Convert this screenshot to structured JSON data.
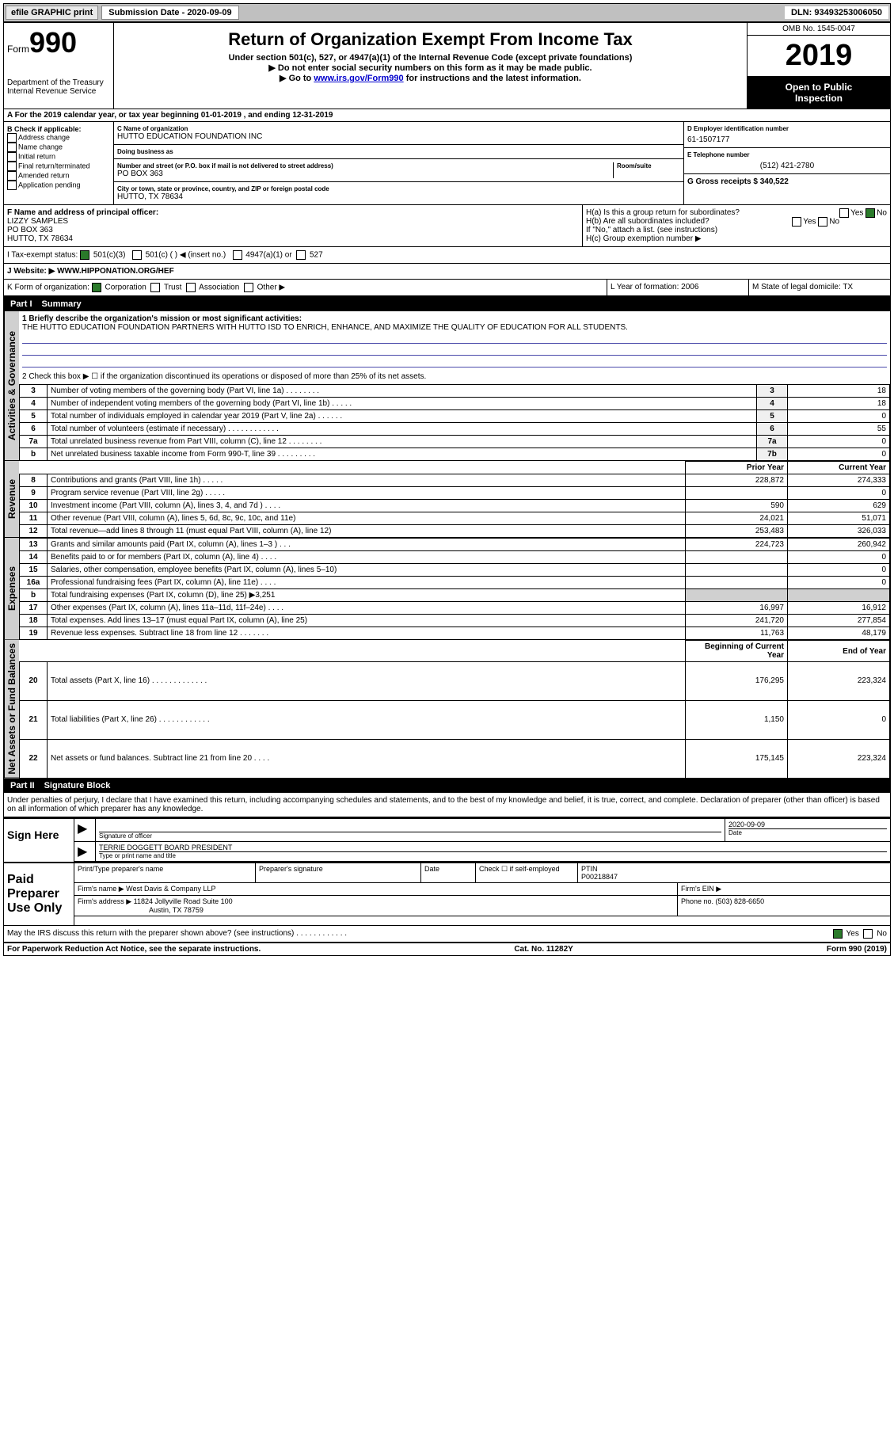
{
  "toolbar": {
    "efile_label": "efile GRAPHIC print",
    "submission_label": "Submission Date - 2020-09-09",
    "dln_label": "DLN: 93493253006050"
  },
  "header": {
    "form_label": "Form",
    "form_number": "990",
    "dept": "Department of the Treasury",
    "irs": "Internal Revenue Service",
    "title": "Return of Organization Exempt From Income Tax",
    "subtitle": "Under section 501(c), 527, or 4947(a)(1) of the Internal Revenue Code (except private foundations)",
    "instr1": "▶ Do not enter social security numbers on this form as it may be made public.",
    "instr2_prefix": "▶ Go to ",
    "instr2_link": "www.irs.gov/Form990",
    "instr2_suffix": " for instructions and the latest information.",
    "omb": "OMB No. 1545-0047",
    "year": "2019",
    "open_public1": "Open to Public",
    "open_public2": "Inspection"
  },
  "section_a": "A For the 2019 calendar year, or tax year beginning 01-01-2019   , and ending 12-31-2019",
  "box_b": {
    "label": "B Check if applicable:",
    "items": [
      "Address change",
      "Name change",
      "Initial return",
      "Final return/terminated",
      "Amended return",
      "Application pending"
    ]
  },
  "box_c": {
    "name_label": "C Name of organization",
    "name": "HUTTO EDUCATION FOUNDATION INC",
    "dba_label": "Doing business as",
    "addr_label": "Number and street (or P.O. box if mail is not delivered to street address)",
    "room_label": "Room/suite",
    "addr": "PO BOX 363",
    "city_label": "City or town, state or province, country, and ZIP or foreign postal code",
    "city": "HUTTO, TX  78634"
  },
  "box_d": {
    "label": "D Employer identification number",
    "value": "61-1507177"
  },
  "box_e": {
    "label": "E Telephone number",
    "value": "(512) 421-2780"
  },
  "box_g": {
    "label": "G Gross receipts $ 340,522"
  },
  "box_f": {
    "label": "F  Name and address of principal officer:",
    "name": "LIZZY SAMPLES",
    "addr1": "PO BOX 363",
    "addr2": "HUTTO, TX  78634"
  },
  "box_h": {
    "ha_label": "H(a)  Is this a group return for subordinates?",
    "ha_yes": "Yes",
    "ha_no": "No",
    "hb_label": "H(b)  Are all subordinates included?",
    "hb_yes": "Yes",
    "hb_no": "No",
    "hb_note": "If \"No,\" attach a list. (see instructions)",
    "hc_label": "H(c)  Group exemption number ▶"
  },
  "tax_exempt": {
    "label": "I   Tax-exempt status:",
    "opt1": "501(c)(3)",
    "opt2": "501(c) (  ) ◀ (insert no.)",
    "opt3": "4947(a)(1) or",
    "opt4": "527"
  },
  "website": {
    "label": "J  Website: ▶",
    "value": "WWW.HIPPONATION.ORG/HEF"
  },
  "box_k": {
    "label": "K Form of organization:",
    "opts": [
      "Corporation",
      "Trust",
      "Association",
      "Other ▶"
    ]
  },
  "box_l": {
    "label": "L Year of formation: 2006"
  },
  "box_m": {
    "label": "M State of legal domicile: TX"
  },
  "part1": {
    "label": "Part I",
    "title": "Summary"
  },
  "summary": {
    "line1_label": "1  Briefly describe the organization's mission or most significant activities:",
    "mission": "THE HUTTO EDUCATION FOUNDATION PARTNERS WITH HUTTO ISD TO ENRICH, ENHANCE, AND MAXIMIZE THE QUALITY OF EDUCATION FOR ALL STUDENTS.",
    "line2": "2    Check this box ▶ ☐  if the organization discontinued its operations or disposed of more than 25% of its net assets."
  },
  "side_labels": {
    "activities": "Activities & Governance",
    "revenue": "Revenue",
    "expenses": "Expenses",
    "netassets": "Net Assets or Fund Balances"
  },
  "gov_rows": [
    {
      "num": "3",
      "desc": "Number of voting members of the governing body (Part VI, line 1a)  .    .    .    .    .    .    .    .",
      "box": "3",
      "val": "18"
    },
    {
      "num": "4",
      "desc": "Number of independent voting members of the governing body (Part VI, line 1b)  .    .    .    .    .",
      "box": "4",
      "val": "18"
    },
    {
      "num": "5",
      "desc": "Total number of individuals employed in calendar year 2019 (Part V, line 2a)  .    .    .    .    .    .",
      "box": "5",
      "val": "0"
    },
    {
      "num": "6",
      "desc": "Total number of volunteers (estimate if necessary)    .    .    .    .    .    .    .    .    .    .    .    .",
      "box": "6",
      "val": "55"
    },
    {
      "num": "7a",
      "desc": "Total unrelated business revenue from Part VIII, column (C), line 12  .    .    .    .    .    .    .    .",
      "box": "7a",
      "val": "0"
    },
    {
      "num": "b",
      "desc": "Net unrelated business taxable income from Form 990-T, line 39   .    .    .    .    .    .    .    .    .",
      "box": "7b",
      "val": "0"
    }
  ],
  "year_header": {
    "prior": "Prior Year",
    "current": "Current Year"
  },
  "rev_rows": [
    {
      "num": "8",
      "desc": "Contributions and grants (Part VIII, line 1h)   .    .    .    .    .",
      "py": "228,872",
      "cy": "274,333"
    },
    {
      "num": "9",
      "desc": "Program service revenue (Part VIII, line 2g)   .    .    .    .    .",
      "py": "",
      "cy": "0"
    },
    {
      "num": "10",
      "desc": "Investment income (Part VIII, column (A), lines 3, 4, and 7d )   .    .    .    .",
      "py": "590",
      "cy": "629"
    },
    {
      "num": "11",
      "desc": "Other revenue (Part VIII, column (A), lines 5, 6d, 8c, 9c, 10c, and 11e)",
      "py": "24,021",
      "cy": "51,071"
    },
    {
      "num": "12",
      "desc": "Total revenue—add lines 8 through 11 (must equal Part VIII, column (A), line 12)",
      "py": "253,483",
      "cy": "326,033"
    }
  ],
  "exp_rows": [
    {
      "num": "13",
      "desc": "Grants and similar amounts paid (Part IX, column (A), lines 1–3 )   .    .    .",
      "py": "224,723",
      "cy": "260,942"
    },
    {
      "num": "14",
      "desc": "Benefits paid to or for members (Part IX, column (A), line 4)   .    .    .    .",
      "py": "",
      "cy": "0"
    },
    {
      "num": "15",
      "desc": "Salaries, other compensation, employee benefits (Part IX, column (A), lines 5–10)",
      "py": "",
      "cy": "0"
    },
    {
      "num": "16a",
      "desc": "Professional fundraising fees (Part IX, column (A), line 11e)   .    .    .    .",
      "py": "",
      "cy": "0"
    },
    {
      "num": "b",
      "desc": "Total fundraising expenses (Part IX, column (D), line 25) ▶3,251",
      "py": "GREY",
      "cy": "GREY"
    },
    {
      "num": "17",
      "desc": "Other expenses (Part IX, column (A), lines 11a–11d, 11f–24e)   .    .    .    .",
      "py": "16,997",
      "cy": "16,912"
    },
    {
      "num": "18",
      "desc": "Total expenses. Add lines 13–17 (must equal Part IX, column (A), line 25)",
      "py": "241,720",
      "cy": "277,854"
    },
    {
      "num": "19",
      "desc": "Revenue less expenses. Subtract line 18 from line 12  .    .    .    .    .    .    .",
      "py": "11,763",
      "cy": "48,179"
    }
  ],
  "na_header": {
    "begin": "Beginning of Current Year",
    "end": "End of Year"
  },
  "na_rows": [
    {
      "num": "20",
      "desc": "Total assets (Part X, line 16)  .    .    .    .    .    .    .    .    .    .    .    .    .",
      "py": "176,295",
      "cy": "223,324"
    },
    {
      "num": "21",
      "desc": "Total liabilities (Part X, line 26)  .    .    .    .    .    .    .    .    .    .    .    .",
      "py": "1,150",
      "cy": "0"
    },
    {
      "num": "22",
      "desc": "Net assets or fund balances. Subtract line 21 from line 20   .    .    .    .",
      "py": "175,145",
      "cy": "223,324"
    }
  ],
  "part2": {
    "label": "Part II",
    "title": "Signature Block"
  },
  "penalties": "Under penalties of perjury, I declare that I have examined this return, including accompanying schedules and statements, and to the best of my knowledge and belief, it is true, correct, and complete. Declaration of preparer (other than officer) is based on all information of which preparer has any knowledge.",
  "sign_here": {
    "label": "Sign Here",
    "sig_officer": "Signature of officer",
    "date_label": "Date",
    "date": "2020-09-09",
    "name": "TERRIE DOGGETT  BOARD PRESIDENT",
    "name_label": "Type or print name and title"
  },
  "paid_preparer": {
    "label": "Paid Preparer Use Only",
    "print_name_label": "Print/Type preparer's name",
    "sig_label": "Preparer's signature",
    "date_label": "Date",
    "check_label": "Check ☐ if self-employed",
    "ptin_label": "PTIN",
    "ptin": "P00218847",
    "firm_name_label": "Firm's name    ▶",
    "firm_name": "West Davis & Company LLP",
    "firm_ein_label": "Firm's EIN ▶",
    "firm_addr_label": "Firm's address ▶",
    "firm_addr1": "11824 Jollyville Road Suite 100",
    "firm_addr2": "Austin, TX  78759",
    "phone_label": "Phone no. (503) 828-6650"
  },
  "discuss": {
    "label": "May the IRS discuss this return with the preparer shown above? (see instructions)   .    .    .    .    .    .    .    .    .    .    .    .",
    "yes": "Yes",
    "no": "No"
  },
  "footer": {
    "left": "For Paperwork Reduction Act Notice, see the separate instructions.",
    "center": "Cat. No. 11282Y",
    "right": "Form 990 (2019)"
  }
}
